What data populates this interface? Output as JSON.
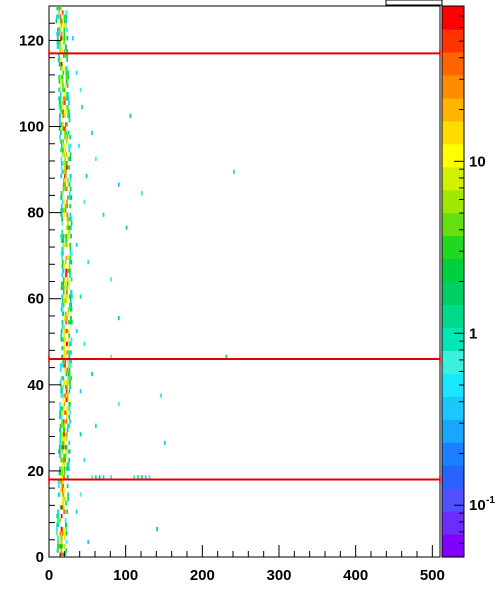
{
  "chart_data": {
    "type": "heatmap",
    "title": "",
    "xlabel": "",
    "ylabel": "",
    "xlim": [
      0,
      510
    ],
    "ylim": [
      0,
      128
    ],
    "x_ticks": [
      0,
      100,
      200,
      300,
      400,
      500
    ],
    "y_ticks": [
      0,
      20,
      40,
      60,
      80,
      100,
      120
    ],
    "x_tick_labels": [
      "0",
      "100",
      "200",
      "300",
      "400",
      "500"
    ],
    "y_tick_labels": [
      "0",
      "20",
      "40",
      "60",
      "80",
      "100",
      "120"
    ],
    "colorbar": {
      "scale": "log",
      "range": [
        0.05,
        80
      ],
      "ticks": [
        {
          "value": 0.1,
          "base": "10",
          "exp": "-1"
        },
        {
          "value": 1,
          "base": "1",
          "exp": ""
        },
        {
          "value": 10,
          "base": "10",
          "exp": ""
        }
      ],
      "colors": [
        "#8000ff",
        "#6a2cff",
        "#5050ff",
        "#2a62ff",
        "#1a80ff",
        "#1aa6ff",
        "#1ac8ff",
        "#1ae6ff",
        "#3cf0e0",
        "#00e6b4",
        "#00d88c",
        "#00d064",
        "#00d040",
        "#20d820",
        "#64e010",
        "#a0e800",
        "#d2f000",
        "#ffff00",
        "#ffdc00",
        "#ffb400",
        "#ff8c00",
        "#ff6400",
        "#ff3200",
        "#ff0000"
      ]
    },
    "horizontal_lines": [
      {
        "y": 117,
        "color": "#e00000"
      },
      {
        "y": 46,
        "color": "#e00000"
      },
      {
        "y": 18,
        "color": "#e00000"
      }
    ],
    "band": {
      "x_center_bottom": 15,
      "x_center_top": 14,
      "x_center_mid": 22,
      "width": 14
    },
    "scatter_points": [
      {
        "x": 30,
        "y": 120
      },
      {
        "x": 35,
        "y": 112
      },
      {
        "x": 40,
        "y": 108
      },
      {
        "x": 42,
        "y": 104
      },
      {
        "x": 105,
        "y": 102
      },
      {
        "x": 55,
        "y": 98
      },
      {
        "x": 38,
        "y": 95
      },
      {
        "x": 60,
        "y": 92
      },
      {
        "x": 240,
        "y": 89
      },
      {
        "x": 48,
        "y": 88
      },
      {
        "x": 90,
        "y": 86
      },
      {
        "x": 120,
        "y": 84
      },
      {
        "x": 45,
        "y": 82
      },
      {
        "x": 70,
        "y": 79
      },
      {
        "x": 100,
        "y": 76
      },
      {
        "x": 35,
        "y": 72
      },
      {
        "x": 50,
        "y": 68
      },
      {
        "x": 80,
        "y": 64
      },
      {
        "x": 40,
        "y": 60
      },
      {
        "x": 90,
        "y": 55
      },
      {
        "x": 35,
        "y": 52
      },
      {
        "x": 45,
        "y": 49
      },
      {
        "x": 80,
        "y": 46
      },
      {
        "x": 230,
        "y": 46
      },
      {
        "x": 55,
        "y": 42
      },
      {
        "x": 40,
        "y": 38
      },
      {
        "x": 145,
        "y": 37
      },
      {
        "x": 90,
        "y": 35
      },
      {
        "x": 60,
        "y": 30
      },
      {
        "x": 40,
        "y": 28
      },
      {
        "x": 150,
        "y": 26
      },
      {
        "x": 45,
        "y": 22
      },
      {
        "x": 55,
        "y": 18
      },
      {
        "x": 60,
        "y": 18
      },
      {
        "x": 65,
        "y": 18
      },
      {
        "x": 70,
        "y": 18
      },
      {
        "x": 80,
        "y": 18
      },
      {
        "x": 110,
        "y": 18
      },
      {
        "x": 115,
        "y": 18
      },
      {
        "x": 120,
        "y": 18
      },
      {
        "x": 125,
        "y": 18
      },
      {
        "x": 130,
        "y": 18
      },
      {
        "x": 40,
        "y": 14
      },
      {
        "x": 35,
        "y": 10
      },
      {
        "x": 140,
        "y": 6
      },
      {
        "x": 50,
        "y": 3
      }
    ]
  }
}
